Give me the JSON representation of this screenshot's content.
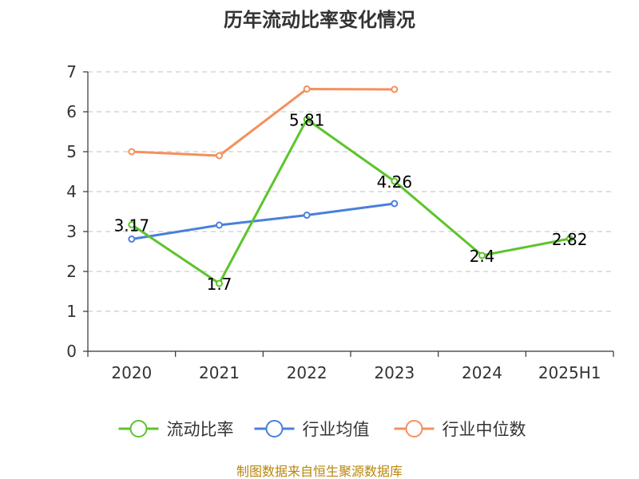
{
  "chart_data": {
    "type": "line",
    "title": "历年流动比率变化情况",
    "categories": [
      "2020",
      "2021",
      "2022",
      "2023",
      "2024",
      "2025H1"
    ],
    "ylim": [
      0,
      7
    ],
    "yticks": [
      "0",
      "1",
      "2",
      "3",
      "4",
      "5",
      "6",
      "7"
    ],
    "grid": true,
    "legend_position": "bottom",
    "series": [
      {
        "name": "流动比率",
        "color": "#5cc42b",
        "values": [
          3.17,
          1.7,
          5.81,
          4.26,
          2.4,
          2.82
        ],
        "labels": [
          "3.17",
          "1.7",
          "5.81",
          "4.26",
          "2.4",
          "2.82"
        ]
      },
      {
        "name": "行业均值",
        "color": "#4a7fdb",
        "values": [
          2.81,
          3.16,
          3.41,
          3.7,
          null,
          null
        ]
      },
      {
        "name": "行业中位数",
        "color": "#f5905c",
        "values": [
          5.0,
          4.9,
          6.57,
          6.56,
          null,
          null
        ]
      }
    ]
  },
  "source": "制图数据来自恒生聚源数据库"
}
